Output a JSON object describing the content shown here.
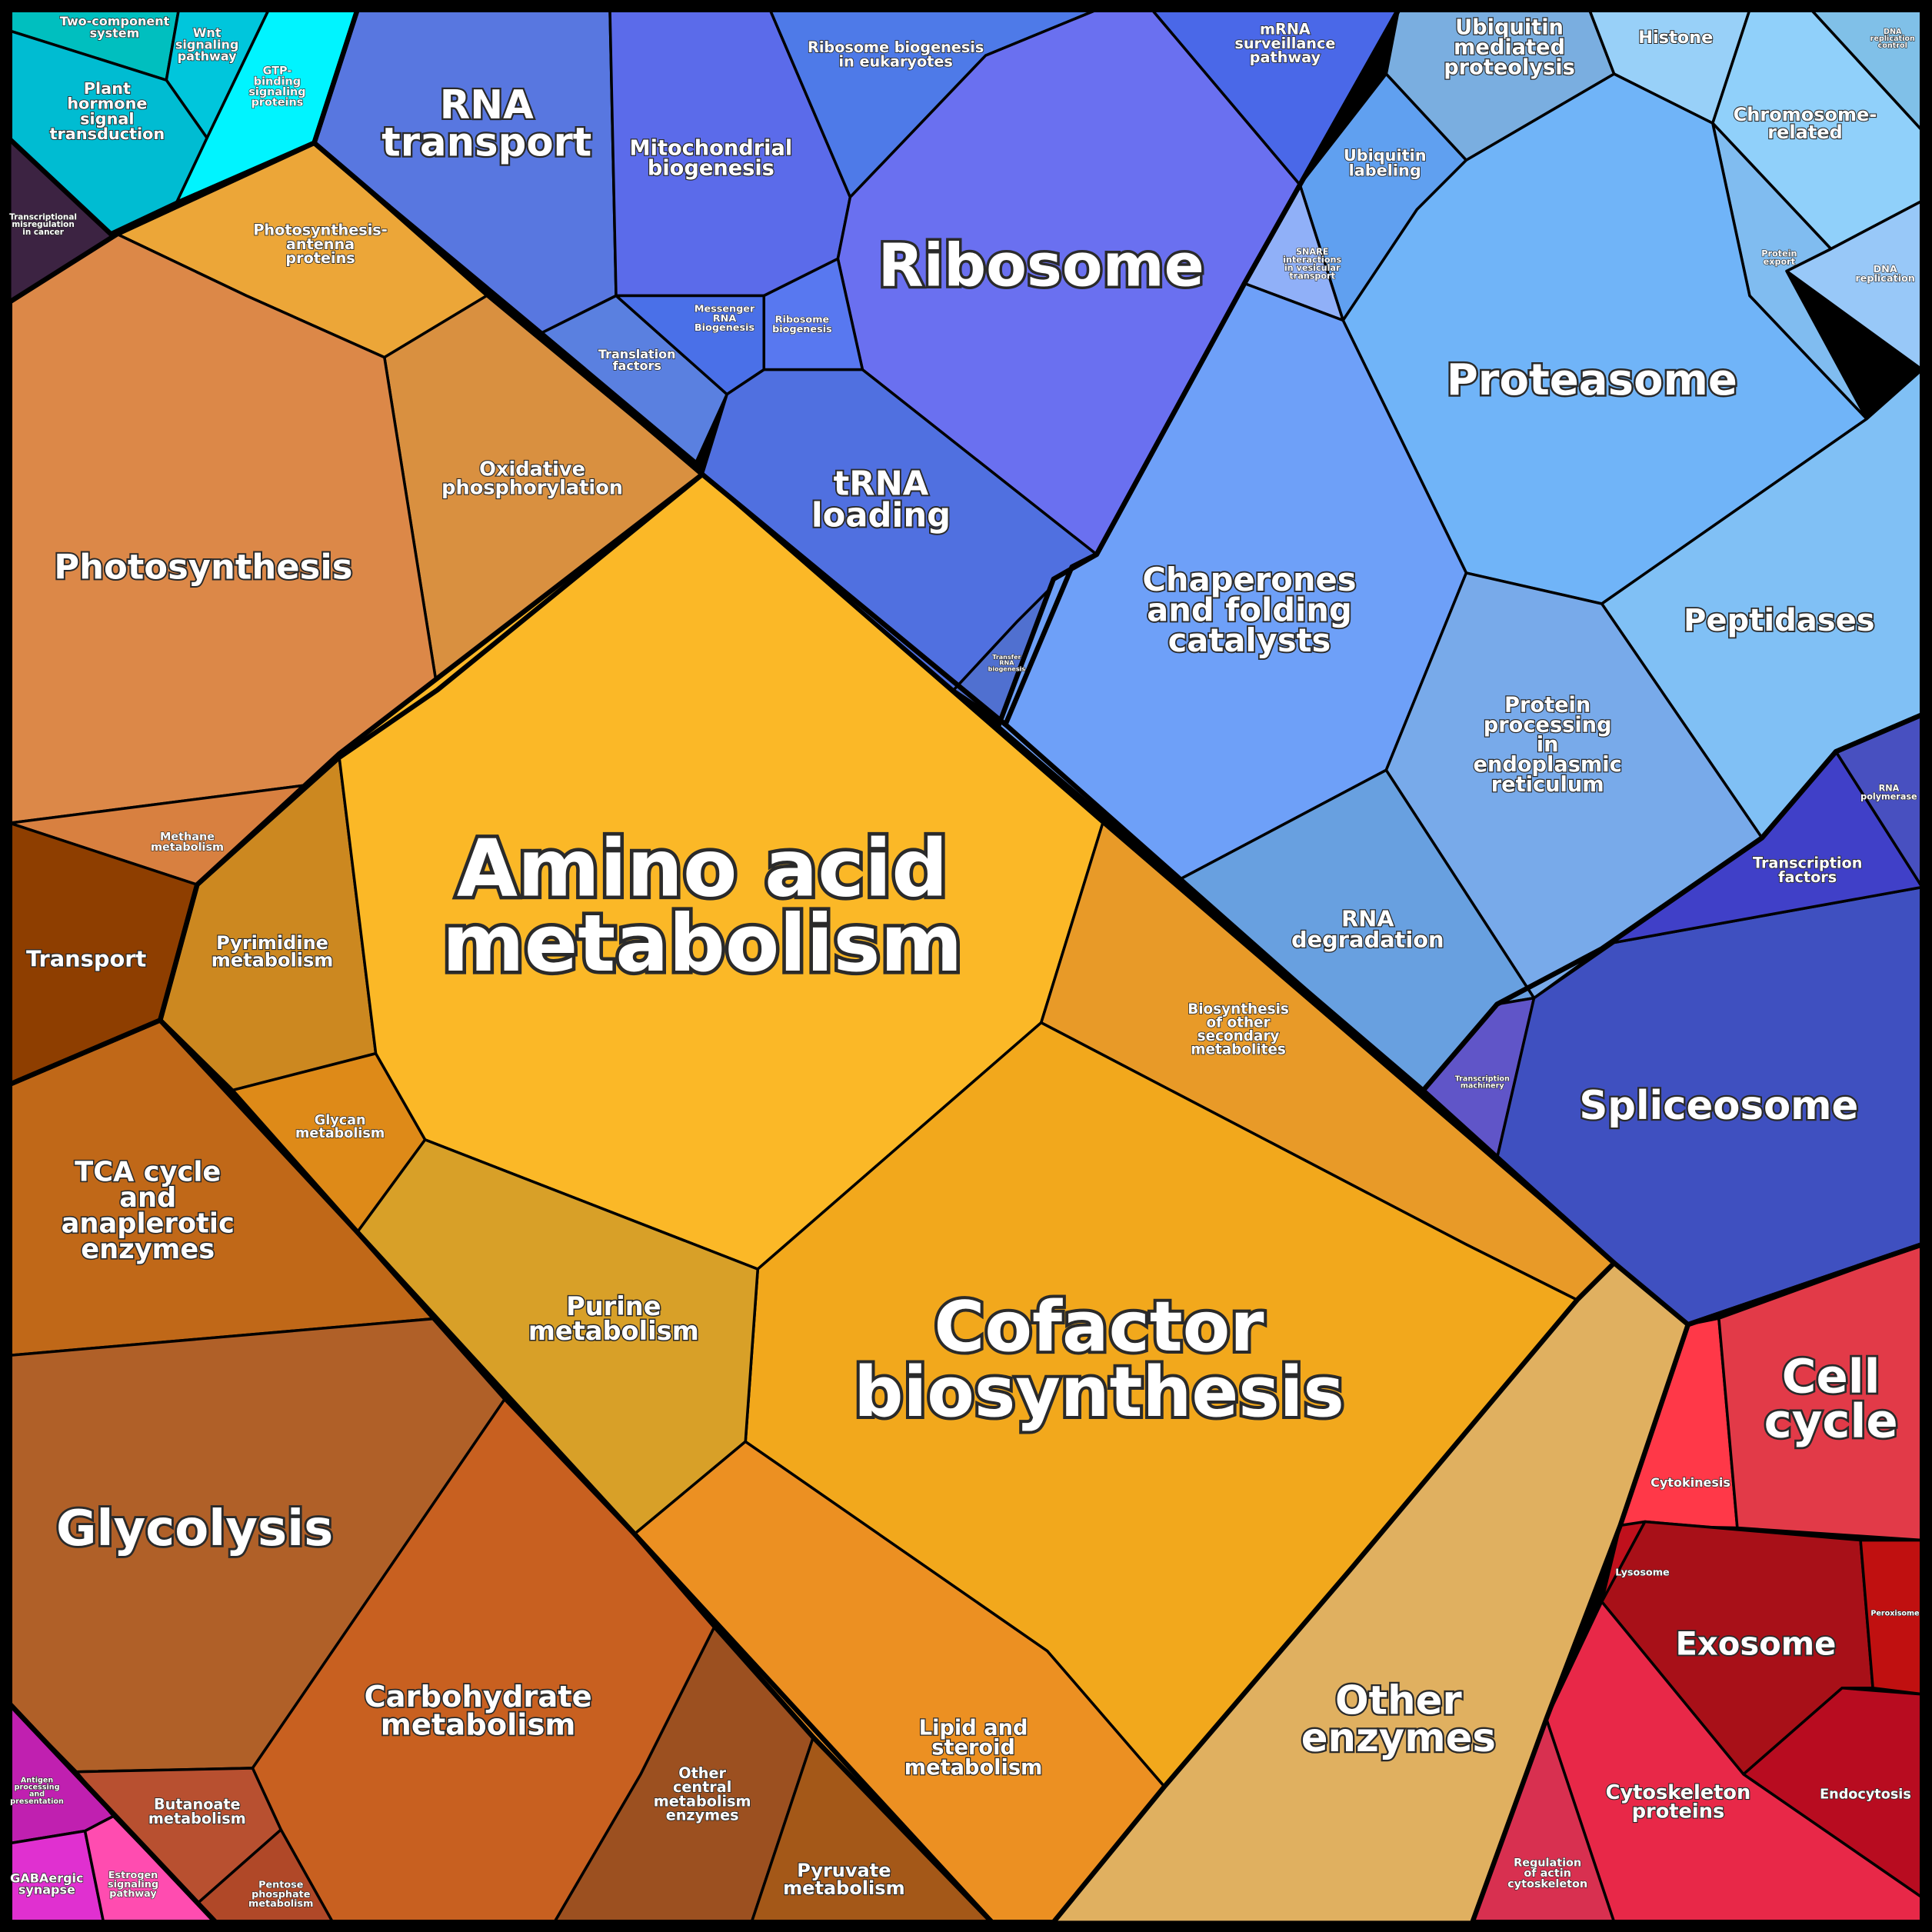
{
  "regions": [
    {
      "lines": [
        "Two-component",
        "system"
      ],
      "color": "#00bfbf"
    },
    {
      "lines": [
        "Wnt",
        "signaling",
        "pathway"
      ],
      "color": "#00c6dc"
    },
    {
      "lines": [
        "Plant",
        "hormone",
        "signal",
        "transduction"
      ],
      "color": "#00bcd2"
    },
    {
      "lines": [
        "GTP-",
        "binding",
        "signaling",
        "proteins"
      ],
      "color": "#00f4ff"
    },
    {
      "lines": [
        "Transcriptional",
        "misregulation",
        "in cancer"
      ],
      "color": "#3c2342"
    },
    {
      "lines": [
        "Photosynthesis-",
        "antenna",
        "proteins"
      ],
      "color": "#eca638"
    },
    {
      "lines": [
        "Oxidative",
        "phosphorylation"
      ],
      "color": "#d99040"
    },
    {
      "lines": [
        "Photosynthesis"
      ],
      "color": "#dc8848"
    },
    {
      "lines": [
        "Methane",
        "metabolism"
      ],
      "color": "#d88040"
    },
    {
      "lines": [
        "Transport"
      ],
      "color": "#8e3e00"
    },
    {
      "lines": [
        "Pyrimidine",
        "metabolism"
      ],
      "color": "#cc8820"
    },
    {
      "lines": [
        "Glycan",
        "metabolism"
      ],
      "color": "#de8a18"
    },
    {
      "lines": [
        "Amino acid",
        "metabolism"
      ],
      "color": "#fbb827"
    },
    {
      "lines": [
        "Biosynthesis",
        "of other",
        "secondary",
        "metabolites"
      ],
      "color": "#e89a28"
    },
    {
      "lines": [
        "Cofactor",
        "biosynthesis"
      ],
      "color": "#f2a81c"
    },
    {
      "lines": [
        "Purine",
        "metabolism"
      ],
      "color": "#d8a028"
    },
    {
      "lines": [
        "Lipid and",
        "steroid",
        "metabolism"
      ],
      "color": "#ec9022"
    },
    {
      "lines": [
        "TCA cycle",
        "and",
        "anaplerotic",
        "enzymes"
      ],
      "color": "#c06818"
    },
    {
      "lines": [
        "Glycolysis"
      ],
      "color": "#b06028"
    },
    {
      "lines": [
        "Carbohydrate",
        "metabolism"
      ],
      "color": "#c86020"
    },
    {
      "lines": [
        "Butanoate",
        "metabolism"
      ],
      "color": "#b85030"
    },
    {
      "lines": [
        "Pentose",
        "phosphate",
        "metabolism"
      ],
      "color": "#b04828"
    },
    {
      "lines": [
        "Other",
        "central",
        "metabolism",
        "enzymes"
      ],
      "color": "#9c5020"
    },
    {
      "lines": [
        "Pyruvate",
        "metabolism"
      ],
      "color": "#a45818"
    },
    {
      "lines": [
        "Antigen",
        "processing",
        "and",
        "presentation"
      ],
      "color": "#c020b0"
    },
    {
      "lines": [
        "GABAergic",
        "synapse"
      ],
      "color": "#e030d0"
    },
    {
      "lines": [
        "Estrogen",
        "signaling",
        "pathway"
      ],
      "color": "#ff4cb0"
    },
    {
      "lines": [
        "RNA",
        "transport"
      ],
      "color": "#5877e0"
    },
    {
      "lines": [
        "Mitochondrial",
        "biogenesis"
      ],
      "color": "#5b6bea"
    },
    {
      "lines": [
        "Ribosome biogenesis",
        "in eukaryotes"
      ],
      "color": "#4e7ae8"
    },
    {
      "lines": [
        "mRNA",
        "surveillance",
        "pathway"
      ],
      "color": "#4a68e8"
    },
    {
      "lines": [
        "Ribosome"
      ],
      "color": "#6a70f0"
    },
    {
      "lines": [
        "Translation",
        "factors"
      ],
      "color": "#5a80e0"
    },
    {
      "lines": [
        "Messenger",
        "RNA",
        "Biogenesis"
      ],
      "color": "#4a70e8"
    },
    {
      "lines": [
        "Ribosome",
        "biogenesis"
      ],
      "color": "#5878f0"
    },
    {
      "lines": [
        "tRNA",
        "loading"
      ],
      "color": "#5070e0"
    },
    {
      "lines": [
        "Transfer",
        "RNA",
        "biogenesis"
      ],
      "color": "#5070d0"
    },
    {
      "lines": [
        "Ubiquitin",
        "mediated",
        "proteolysis"
      ],
      "color": "#7aaee0"
    },
    {
      "lines": [
        "Histone"
      ],
      "color": "#98d0f8"
    },
    {
      "lines": [
        "DNA",
        "replication",
        "control"
      ],
      "color": "#80c0e8"
    },
    {
      "lines": [
        "Chromosome-",
        "related"
      ],
      "color": "#90d0fa"
    },
    {
      "lines": [
        "DNA",
        "replication"
      ],
      "color": "#98c8f8"
    },
    {
      "lines": [
        "Protein",
        "export"
      ],
      "color": "#80bcf0"
    },
    {
      "lines": [
        "Ubiquitin",
        "labeling"
      ],
      "color": "#60a0f0"
    },
    {
      "lines": [
        "SNARE",
        "interactions",
        "in vesicular",
        "transport"
      ],
      "color": "#90b0f8"
    },
    {
      "lines": [
        "Proteasome"
      ],
      "color": "#70b4f8"
    },
    {
      "lines": [
        "Peptidases"
      ],
      "color": "#80c0f5"
    },
    {
      "lines": [
        "Chaperones",
        "and folding",
        "catalysts"
      ],
      "color": "#6ea0f8"
    },
    {
      "lines": [
        "Protein",
        "processing",
        "in",
        "endoplasmic",
        "reticulum"
      ],
      "color": "#78aaea"
    },
    {
      "lines": [
        "RNA",
        "degradation"
      ],
      "color": "#68a0e0"
    },
    {
      "lines": [
        "Transcription",
        "machinery"
      ],
      "color": "#6055c8"
    },
    {
      "lines": [
        "Spliceosome"
      ],
      "color": "#3f50c0"
    },
    {
      "lines": [
        "Transcription",
        "factors"
      ],
      "color": "#4040c8"
    },
    {
      "lines": [
        "RNA",
        "polymerase"
      ],
      "color": "#4850c0"
    },
    {
      "lines": [
        "Cytokinesis"
      ],
      "color": "#ff3848"
    },
    {
      "lines": [
        "Cell",
        "cycle"
      ],
      "color": "#e23a48"
    },
    {
      "lines": [
        "Lysosome"
      ],
      "color": "#c0101c"
    },
    {
      "lines": [
        "Exosome"
      ],
      "color": "#a81018"
    },
    {
      "lines": [
        "Peroxisome"
      ],
      "color": "#c01010"
    },
    {
      "lines": [
        "Endocytosis"
      ],
      "color": "#b80c20"
    },
    {
      "lines": [
        "Cytoskeleton",
        "proteins"
      ],
      "color": "#e82848"
    },
    {
      "lines": [
        "Regulation",
        "of actin",
        "cytoskeleton"
      ],
      "color": "#d83050"
    },
    {
      "lines": [
        "Other",
        "enzymes"
      ],
      "color": "#e0b060"
    }
  ]
}
